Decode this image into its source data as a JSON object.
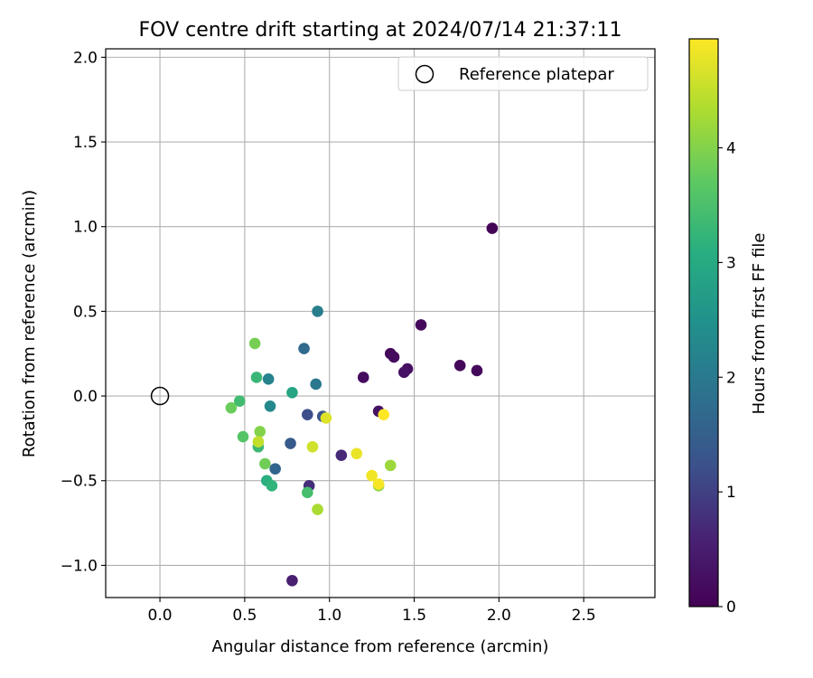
{
  "chart_data": {
    "type": "scatter",
    "title": "FOV centre drift starting at 2024/07/14 21:37:11",
    "xlabel": "Angular distance from reference (arcmin)",
    "ylabel": "Rotation from reference (arcmin)",
    "xlim": [
      -0.32,
      2.92
    ],
    "ylim": [
      -1.19,
      2.05
    ],
    "xticks": [
      0.0,
      0.5,
      1.0,
      1.5,
      2.0,
      2.5
    ],
    "xtick_labels": [
      "0.0",
      "0.5",
      "1.0",
      "1.5",
      "2.0",
      "2.5"
    ],
    "yticks": [
      -1.0,
      -0.5,
      0.0,
      0.5,
      1.0,
      1.5,
      2.0
    ],
    "ytick_labels": [
      "−1.0",
      "−0.5",
      "0.0",
      "0.5",
      "1.0",
      "1.5",
      "2.0"
    ],
    "grid": true,
    "legend": {
      "position": "top-right",
      "entries": [
        "Reference platepar"
      ]
    },
    "reference_point": {
      "x": 0.0,
      "y": 0.0,
      "label": "Reference platepar"
    },
    "colorbar": {
      "label": "Hours from first FF file",
      "colormap": "viridis",
      "range": [
        0,
        4.95
      ],
      "ticks": [
        0,
        1,
        2,
        3,
        4
      ],
      "tick_labels": [
        "0",
        "1",
        "2",
        "3",
        "4"
      ]
    },
    "points": [
      {
        "x": 1.96,
        "y": 0.99,
        "h": 0.05
      },
      {
        "x": 1.54,
        "y": 0.42,
        "h": 0.15
      },
      {
        "x": 1.36,
        "y": 0.25,
        "h": 0.1
      },
      {
        "x": 1.38,
        "y": 0.23,
        "h": 0.2
      },
      {
        "x": 1.77,
        "y": 0.18,
        "h": 0.1
      },
      {
        "x": 1.87,
        "y": 0.15,
        "h": 0.15
      },
      {
        "x": 1.46,
        "y": 0.16,
        "h": 0.25
      },
      {
        "x": 1.44,
        "y": 0.14,
        "h": 0.3
      },
      {
        "x": 1.2,
        "y": 0.11,
        "h": 0.2
      },
      {
        "x": 1.29,
        "y": -0.09,
        "h": 0.3
      },
      {
        "x": 1.07,
        "y": -0.35,
        "h": 0.7
      },
      {
        "x": 0.88,
        "y": -0.53,
        "h": 0.75
      },
      {
        "x": 0.78,
        "y": -1.09,
        "h": 0.55
      },
      {
        "x": 0.87,
        "y": -0.11,
        "h": 1.2
      },
      {
        "x": 0.96,
        "y": -0.12,
        "h": 1.3
      },
      {
        "x": 0.77,
        "y": -0.28,
        "h": 1.4
      },
      {
        "x": 0.68,
        "y": -0.43,
        "h": 1.6
      },
      {
        "x": 0.85,
        "y": 0.28,
        "h": 1.7
      },
      {
        "x": 0.93,
        "y": 0.5,
        "h": 2.1
      },
      {
        "x": 0.92,
        "y": 0.07,
        "h": 1.95
      },
      {
        "x": 0.64,
        "y": 0.1,
        "h": 2.2
      },
      {
        "x": 0.65,
        "y": -0.06,
        "h": 2.3
      },
      {
        "x": 0.78,
        "y": 0.02,
        "h": 2.9
      },
      {
        "x": 0.63,
        "y": -0.5,
        "h": 3.1
      },
      {
        "x": 0.66,
        "y": -0.53,
        "h": 3.2
      },
      {
        "x": 0.57,
        "y": 0.11,
        "h": 3.3
      },
      {
        "x": 0.58,
        "y": -0.3,
        "h": 3.35
      },
      {
        "x": 0.47,
        "y": -0.03,
        "h": 3.4
      },
      {
        "x": 0.87,
        "y": -0.57,
        "h": 3.45
      },
      {
        "x": 0.49,
        "y": -0.24,
        "h": 3.6
      },
      {
        "x": 0.42,
        "y": -0.07,
        "h": 3.8
      },
      {
        "x": 0.62,
        "y": -0.4,
        "h": 3.85
      },
      {
        "x": 0.56,
        "y": 0.31,
        "h": 3.9
      },
      {
        "x": 0.59,
        "y": -0.21,
        "h": 4.0
      },
      {
        "x": 1.29,
        "y": -0.53,
        "h": 4.1
      },
      {
        "x": 1.36,
        "y": -0.41,
        "h": 4.2
      },
      {
        "x": 0.93,
        "y": -0.67,
        "h": 4.3
      },
      {
        "x": 0.58,
        "y": -0.27,
        "h": 4.5
      },
      {
        "x": 0.9,
        "y": -0.3,
        "h": 4.6
      },
      {
        "x": 0.98,
        "y": -0.13,
        "h": 4.7
      },
      {
        "x": 1.16,
        "y": -0.34,
        "h": 4.8
      },
      {
        "x": 1.25,
        "y": -0.47,
        "h": 4.85
      },
      {
        "x": 1.29,
        "y": -0.52,
        "h": 4.9
      },
      {
        "x": 1.32,
        "y": -0.11,
        "h": 4.95
      }
    ]
  }
}
